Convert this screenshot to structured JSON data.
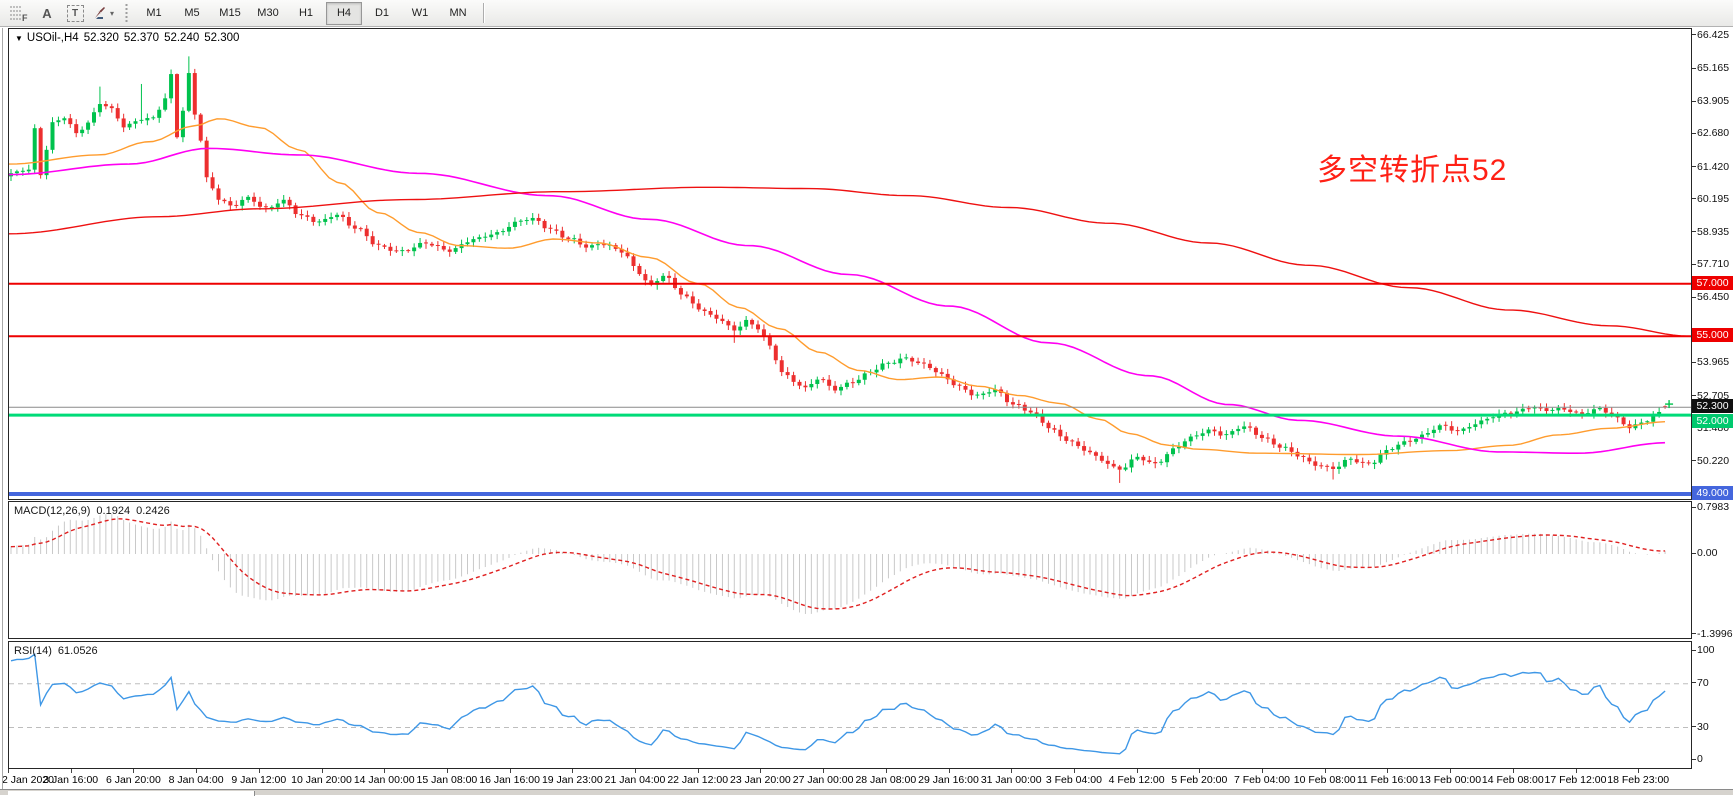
{
  "toolbar": {
    "fibo_letter": "F",
    "text_tool_letter": "A",
    "label_tool_letter": "T",
    "timeframes": [
      "M1",
      "M5",
      "M15",
      "M30",
      "H1",
      "H4",
      "D1",
      "W1",
      "MN"
    ],
    "active_timeframe": "H4"
  },
  "icons": {
    "dropdown_caret": "▾",
    "title_marker": "▼"
  },
  "chart": {
    "symbol_period": "USOil-,H4",
    "open": "52.320",
    "high": "52.370",
    "low": "52.240",
    "close": "52.300"
  },
  "annotation": {
    "text": "多空转折点52",
    "color": "#ff2015"
  },
  "price_axis": {
    "ticks": [
      {
        "v": 66.425,
        "label": "66.425"
      },
      {
        "v": 65.165,
        "label": "65.165"
      },
      {
        "v": 63.905,
        "label": "63.905"
      },
      {
        "v": 62.68,
        "label": "62.680"
      },
      {
        "v": 61.42,
        "label": "61.420"
      },
      {
        "v": 60.195,
        "label": "60.195"
      },
      {
        "v": 58.935,
        "label": "58.935"
      },
      {
        "v": 57.71,
        "label": "57.710"
      },
      {
        "v": 56.45,
        "label": "56.450"
      },
      {
        "v": 53.965,
        "label": "53.965"
      },
      {
        "v": 52.705,
        "label": "52.705"
      },
      {
        "v": 51.48,
        "label": "51.480"
      },
      {
        "v": 50.22,
        "label": "50.220"
      }
    ],
    "badges": [
      {
        "label": "57.000",
        "price": 57.0,
        "bg": "#ee0000"
      },
      {
        "label": "55.000",
        "price": 55.0,
        "bg": "#ee0000"
      },
      {
        "label": "52.300",
        "price": 52.3,
        "bg": "#101010"
      },
      {
        "label": "52.000",
        "price": 52.0,
        "bg": "#00c96e"
      },
      {
        "label": "49.000",
        "price": 49.0,
        "bg": "#4466dd"
      }
    ]
  },
  "hlines": [
    {
      "price": 57.0,
      "color": "#ee0000",
      "width": 2
    },
    {
      "price": 55.0,
      "color": "#ee0000",
      "width": 2
    },
    {
      "price": 52.3,
      "color": "#8a8a8a",
      "width": 1
    },
    {
      "price": 52.0,
      "color": "#00db78",
      "width": 3
    },
    {
      "price": 49.0,
      "color": "#4466dd",
      "width": 4
    }
  ],
  "colors": {
    "bull": "#00c24d",
    "bear": "#ec2f2f",
    "macd_hist": "#c9c9c9",
    "macd_signal": "#e02020",
    "rsi_line": "#3e97e6",
    "rsi_level": "#bdbdbd"
  },
  "chart_data": {
    "type": "candlestick+indicators",
    "symbol": "USOil-",
    "period": "H4",
    "bars": 280,
    "ylim": [
      48.8,
      66.69
    ],
    "close_anchors": [
      [
        0,
        61.15
      ],
      [
        3,
        61.35
      ],
      [
        4,
        62.9
      ],
      [
        5,
        61.2
      ],
      [
        7,
        63.1
      ],
      [
        9,
        63.3
      ],
      [
        11,
        62.7
      ],
      [
        13,
        63.15
      ],
      [
        15,
        63.9
      ],
      [
        17,
        63.6
      ],
      [
        19,
        62.95
      ],
      [
        22,
        63.3
      ],
      [
        24,
        63.3
      ],
      [
        26,
        64.0
      ],
      [
        27,
        64.9
      ],
      [
        28,
        62.6
      ],
      [
        29,
        63.6
      ],
      [
        30,
        65.0
      ],
      [
        31,
        63.5
      ],
      [
        32,
        62.5
      ],
      [
        33,
        61.0
      ],
      [
        35,
        60.2
      ],
      [
        37,
        59.95
      ],
      [
        40,
        60.3
      ],
      [
        43,
        59.8
      ],
      [
        46,
        60.15
      ],
      [
        49,
        59.6
      ],
      [
        52,
        59.3
      ],
      [
        55,
        59.65
      ],
      [
        58,
        59.15
      ],
      [
        62,
        58.4
      ],
      [
        66,
        58.25
      ],
      [
        70,
        58.5
      ],
      [
        74,
        58.3
      ],
      [
        78,
        58.65
      ],
      [
        82,
        58.95
      ],
      [
        85,
        59.3
      ],
      [
        88,
        59.45
      ],
      [
        91,
        59.1
      ],
      [
        94,
        58.7
      ],
      [
        97,
        58.4
      ],
      [
        100,
        58.55
      ],
      [
        103,
        58.2
      ],
      [
        106,
        57.4
      ],
      [
        108,
        56.95
      ],
      [
        110,
        57.35
      ],
      [
        113,
        56.6
      ],
      [
        116,
        56.1
      ],
      [
        119,
        55.7
      ],
      [
        122,
        55.2
      ],
      [
        124,
        55.6
      ],
      [
        126,
        55.35
      ],
      [
        128,
        54.6
      ],
      [
        130,
        53.6
      ],
      [
        132,
        53.3
      ],
      [
        134,
        53.05
      ],
      [
        136,
        53.4
      ],
      [
        139,
        52.95
      ],
      [
        142,
        53.3
      ],
      [
        145,
        53.65
      ],
      [
        148,
        53.95
      ],
      [
        151,
        54.2
      ],
      [
        154,
        53.9
      ],
      [
        157,
        53.5
      ],
      [
        160,
        53.1
      ],
      [
        163,
        52.7
      ],
      [
        166,
        52.95
      ],
      [
        169,
        52.45
      ],
      [
        172,
        52.1
      ],
      [
        175,
        51.55
      ],
      [
        178,
        51.1
      ],
      [
        181,
        50.65
      ],
      [
        184,
        50.3
      ],
      [
        187,
        49.95
      ],
      [
        190,
        50.35
      ],
      [
        193,
        50.15
      ],
      [
        196,
        50.7
      ],
      [
        199,
        51.1
      ],
      [
        202,
        51.45
      ],
      [
        205,
        51.25
      ],
      [
        208,
        51.55
      ],
      [
        211,
        51.2
      ],
      [
        214,
        50.8
      ],
      [
        217,
        50.45
      ],
      [
        220,
        50.15
      ],
      [
        223,
        49.95
      ],
      [
        226,
        50.3
      ],
      [
        229,
        50.15
      ],
      [
        232,
        50.6
      ],
      [
        235,
        50.95
      ],
      [
        238,
        51.25
      ],
      [
        241,
        51.55
      ],
      [
        244,
        51.4
      ],
      [
        247,
        51.7
      ],
      [
        250,
        51.9
      ],
      [
        253,
        52.1
      ],
      [
        256,
        52.3
      ],
      [
        259,
        52.15
      ],
      [
        262,
        52.25
      ],
      [
        265,
        52.05
      ],
      [
        268,
        52.2
      ],
      [
        271,
        51.9
      ],
      [
        273,
        51.55
      ],
      [
        276,
        51.75
      ],
      [
        278,
        52.1
      ],
      [
        279,
        52.3
      ]
    ],
    "special_bars": {
      "15": {
        "high": 64.5
      },
      "22": {
        "high": 64.6
      },
      "27": {
        "high": 65.15
      },
      "28": {
        "high": 65.0
      },
      "30": {
        "high": 65.65
      },
      "122": {
        "low": 54.75
      },
      "187": {
        "low": 49.42
      },
      "223": {
        "low": 49.55
      },
      "279": {
        "open": 52.32,
        "high": 52.37,
        "low": 52.24,
        "close": 52.3
      }
    },
    "current_bar_marker": {
      "price": 52.42,
      "color": "#00c24d"
    },
    "moving_averages": [
      {
        "name": "ma-fast",
        "color": "#ff9c2e",
        "width": 1.4,
        "anchors": [
          [
            0,
            61.55
          ],
          [
            90,
            61.9
          ],
          [
            140,
            62.4
          ],
          [
            185,
            63.0
          ],
          [
            210,
            63.28
          ],
          [
            250,
            62.95
          ],
          [
            290,
            62.1
          ],
          [
            330,
            60.85
          ],
          [
            370,
            59.7
          ],
          [
            410,
            58.95
          ],
          [
            450,
            58.45
          ],
          [
            500,
            58.35
          ],
          [
            545,
            58.7
          ],
          [
            590,
            58.55
          ],
          [
            640,
            58.0
          ],
          [
            690,
            57.0
          ],
          [
            730,
            56.1
          ],
          [
            770,
            55.3
          ],
          [
            810,
            54.4
          ],
          [
            850,
            53.7
          ],
          [
            890,
            53.35
          ],
          [
            930,
            53.45
          ],
          [
            970,
            53.1
          ],
          [
            1010,
            52.75
          ],
          [
            1050,
            52.45
          ],
          [
            1090,
            51.85
          ],
          [
            1120,
            51.3
          ],
          [
            1160,
            50.85
          ],
          [
            1190,
            50.7
          ],
          [
            1250,
            50.55
          ],
          [
            1350,
            50.5
          ],
          [
            1440,
            50.65
          ],
          [
            1500,
            50.85
          ],
          [
            1550,
            51.25
          ],
          [
            1600,
            51.5
          ],
          [
            1658,
            51.75
          ]
        ]
      },
      {
        "name": "ma-mid",
        "color": "#ff00f2",
        "width": 1.6,
        "anchors": [
          [
            0,
            61.15
          ],
          [
            120,
            61.55
          ],
          [
            200,
            62.15
          ],
          [
            290,
            61.9
          ],
          [
            410,
            61.2
          ],
          [
            540,
            60.35
          ],
          [
            640,
            59.45
          ],
          [
            740,
            58.45
          ],
          [
            840,
            57.35
          ],
          [
            940,
            56.15
          ],
          [
            1040,
            54.75
          ],
          [
            1140,
            53.5
          ],
          [
            1220,
            52.4
          ],
          [
            1290,
            51.8
          ],
          [
            1390,
            51.2
          ],
          [
            1490,
            50.6
          ],
          [
            1570,
            50.55
          ],
          [
            1658,
            50.95
          ]
        ]
      },
      {
        "name": "ma-slow",
        "color": "#ee1111",
        "width": 1.4,
        "anchors": [
          [
            0,
            58.9
          ],
          [
            150,
            59.55
          ],
          [
            250,
            59.85
          ],
          [
            400,
            60.2
          ],
          [
            550,
            60.5
          ],
          [
            700,
            60.67
          ],
          [
            800,
            60.62
          ],
          [
            900,
            60.35
          ],
          [
            1000,
            59.9
          ],
          [
            1100,
            59.3
          ],
          [
            1200,
            58.55
          ],
          [
            1300,
            57.7
          ],
          [
            1400,
            56.85
          ],
          [
            1500,
            56.0
          ],
          [
            1600,
            55.4
          ],
          [
            1682,
            55.0
          ]
        ]
      }
    ],
    "macd": {
      "label": "MACD(12,26,9)",
      "value_main": "0.1924",
      "value_signal": "0.2426",
      "fast": 12,
      "slow": 26,
      "signal": 9,
      "scale_ticks": [
        {
          "v": 0.7983,
          "label": "0.7983"
        },
        {
          "v": 0,
          "label": "0.00"
        },
        {
          "v": -1.3996,
          "label": "-1.3996"
        }
      ]
    },
    "rsi": {
      "label": "RSI(14)",
      "value": "61.0526",
      "period": 14,
      "levels": [
        70,
        30
      ],
      "scale_ticks": [
        {
          "v": 100,
          "label": "100"
        },
        {
          "v": 70,
          "label": "70"
        },
        {
          "v": 30,
          "label": "30"
        },
        {
          "v": 0,
          "label": "0"
        }
      ]
    },
    "x_labels": [
      "2 Jan 2020",
      "3 Jan 16:00",
      "6 Jan 20:00",
      "8 Jan 04:00",
      "9 Jan 12:00",
      "10 Jan 20:00",
      "14 Jan 00:00",
      "15 Jan 08:00",
      "16 Jan 16:00",
      "19 Jan 23:00",
      "21 Jan 04:00",
      "22 Jan 12:00",
      "23 Jan 20:00",
      "27 Jan 00:00",
      "28 Jan 08:00",
      "29 Jan 16:00",
      "31 Jan 00:00",
      "3 Feb 04:00",
      "4 Feb 12:00",
      "5 Feb 20:00",
      "7 Feb 04:00",
      "10 Feb 08:00",
      "11 Feb 16:00",
      "13 Feb 00:00",
      "14 Feb 08:00",
      "17 Feb 12:00",
      "18 Feb 23:00"
    ]
  }
}
